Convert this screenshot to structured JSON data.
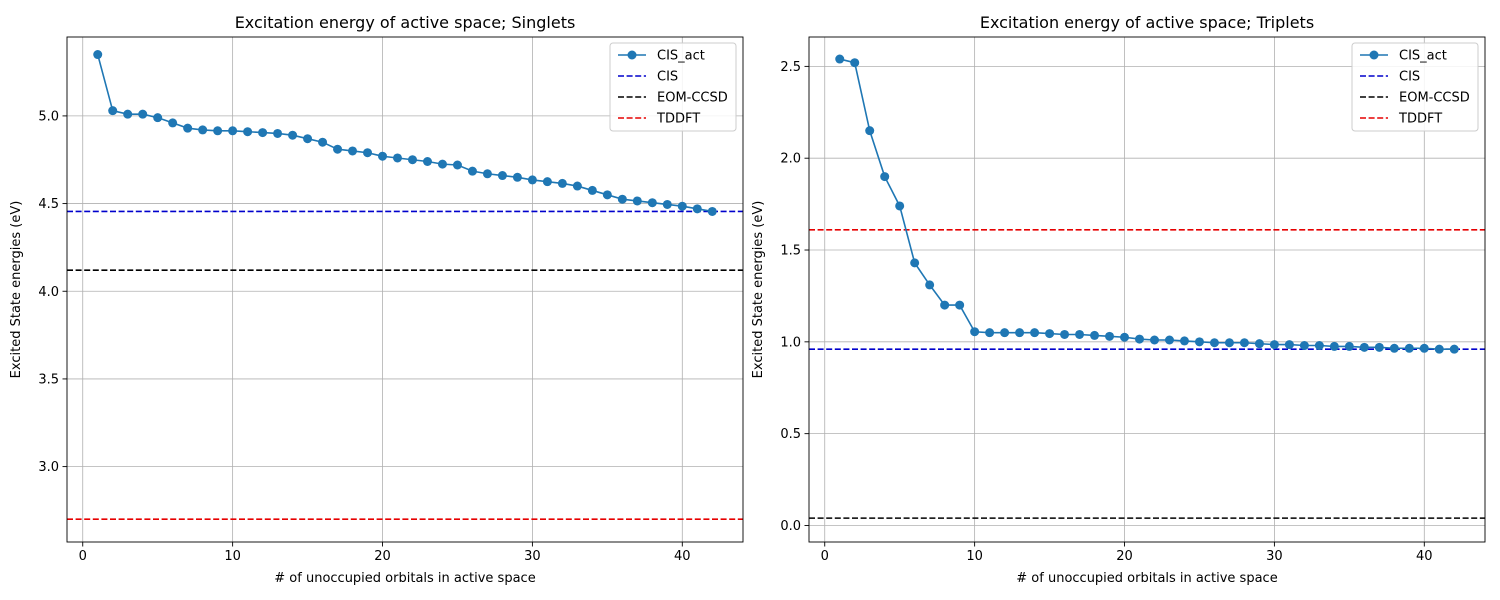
{
  "chart_data": [
    {
      "type": "line",
      "title": "Excitation energy of active space; Singlets",
      "xlabel": "# of unoccupied orbitals in active space",
      "ylabel": "Excited State energies (eV)",
      "xlim": [
        -1.05,
        44.05
      ],
      "ylim": [
        2.57,
        5.45
      ],
      "xticks": [
        0,
        10,
        20,
        30,
        40
      ],
      "xtick_labels": [
        "0",
        "10",
        "20",
        "30",
        "40"
      ],
      "yticks": [
        3.0,
        3.5,
        4.0,
        4.5,
        5.0
      ],
      "ytick_labels": [
        "3.0",
        "3.5",
        "4.0",
        "4.5",
        "5.0"
      ],
      "grid": true,
      "legend_position": "top-right",
      "series": [
        {
          "name": "CIS_act",
          "style": "solid-marker",
          "color": "#1f77b4",
          "x": [
            1,
            2,
            3,
            4,
            5,
            6,
            7,
            8,
            9,
            10,
            11,
            12,
            13,
            14,
            15,
            16,
            17,
            18,
            19,
            20,
            21,
            22,
            23,
            24,
            25,
            26,
            27,
            28,
            29,
            30,
            31,
            32,
            33,
            34,
            35,
            36,
            37,
            38,
            39,
            40,
            41,
            42
          ],
          "y": [
            5.35,
            5.03,
            5.01,
            5.01,
            4.99,
            4.96,
            4.93,
            4.92,
            4.915,
            4.915,
            4.91,
            4.905,
            4.9,
            4.89,
            4.87,
            4.85,
            4.81,
            4.8,
            4.79,
            4.77,
            4.76,
            4.75,
            4.74,
            4.725,
            4.72,
            4.685,
            4.67,
            4.66,
            4.65,
            4.635,
            4.625,
            4.615,
            4.6,
            4.575,
            4.55,
            4.525,
            4.515,
            4.505,
            4.495,
            4.485,
            4.47,
            4.455
          ]
        },
        {
          "name": "CIS",
          "style": "hline-dashed",
          "color": "#0000cc",
          "y": 4.455
        },
        {
          "name": "EOM-CCSD",
          "style": "hline-dashed",
          "color": "#000000",
          "y": 4.12
        },
        {
          "name": "TDDFT",
          "style": "hline-dashed",
          "color": "#e60000",
          "y": 2.7
        }
      ]
    },
    {
      "type": "line",
      "title": "Excitation energy of active space; Triplets",
      "xlabel": "# of unoccupied orbitals in active space",
      "ylabel": "Excited State energies (eV)",
      "xlim": [
        -1.05,
        44.05
      ],
      "ylim": [
        -0.09,
        2.66
      ],
      "xticks": [
        0,
        10,
        20,
        30,
        40
      ],
      "xtick_labels": [
        "0",
        "10",
        "20",
        "30",
        "40"
      ],
      "yticks": [
        0.0,
        0.5,
        1.0,
        1.5,
        2.0,
        2.5
      ],
      "ytick_labels": [
        "0.0",
        "0.5",
        "1.0",
        "1.5",
        "2.0",
        "2.5"
      ],
      "grid": true,
      "legend_position": "top-right",
      "series": [
        {
          "name": "CIS_act",
          "style": "solid-marker",
          "color": "#1f77b4",
          "x": [
            1,
            2,
            3,
            4,
            5,
            6,
            7,
            8,
            9,
            10,
            11,
            12,
            13,
            14,
            15,
            16,
            17,
            18,
            19,
            20,
            21,
            22,
            23,
            24,
            25,
            26,
            27,
            28,
            29,
            30,
            31,
            32,
            33,
            34,
            35,
            36,
            37,
            38,
            39,
            40,
            41,
            42
          ],
          "y": [
            2.54,
            2.52,
            2.15,
            1.9,
            1.74,
            1.43,
            1.31,
            1.2,
            1.2,
            1.055,
            1.05,
            1.05,
            1.05,
            1.05,
            1.045,
            1.04,
            1.04,
            1.035,
            1.03,
            1.025,
            1.015,
            1.01,
            1.01,
            1.005,
            1.0,
            0.995,
            0.995,
            0.995,
            0.99,
            0.985,
            0.985,
            0.98,
            0.98,
            0.975,
            0.975,
            0.97,
            0.97,
            0.965,
            0.965,
            0.965,
            0.96,
            0.96
          ]
        },
        {
          "name": "CIS",
          "style": "hline-dashed",
          "color": "#0000cc",
          "y": 0.96
        },
        {
          "name": "EOM-CCSD",
          "style": "hline-dashed",
          "color": "#000000",
          "y": 0.04
        },
        {
          "name": "TDDFT",
          "style": "hline-dashed",
          "color": "#e60000",
          "y": 1.61
        }
      ]
    }
  ]
}
